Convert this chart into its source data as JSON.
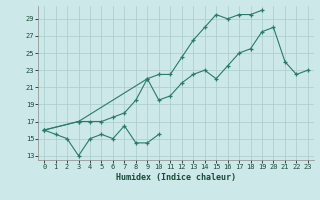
{
  "xlabel": "Humidex (Indice chaleur)",
  "bg_color": "#cce8e8",
  "grid_color": "#aacccc",
  "line_color": "#2a7a6a",
  "xlim": [
    -0.5,
    23.5
  ],
  "ylim": [
    12.5,
    30.5
  ],
  "xticks": [
    0,
    1,
    2,
    3,
    4,
    5,
    6,
    7,
    8,
    9,
    10,
    11,
    12,
    13,
    14,
    15,
    16,
    17,
    18,
    19,
    20,
    21,
    22,
    23
  ],
  "yticks": [
    13,
    15,
    17,
    19,
    21,
    23,
    25,
    27,
    29
  ],
  "line1_x": [
    0,
    1,
    2,
    3,
    4,
    5,
    6,
    7,
    8,
    9,
    10
  ],
  "line1_y": [
    16.0,
    15.5,
    15.0,
    13.0,
    15.0,
    15.5,
    15.0,
    16.5,
    14.5,
    14.5,
    15.5
  ],
  "line2_x": [
    0,
    3,
    4,
    5,
    6,
    7,
    8,
    9,
    10,
    11,
    12,
    13,
    14,
    15,
    16,
    17,
    18,
    19
  ],
  "line2_y": [
    16.0,
    17.0,
    17.0,
    17.0,
    17.5,
    18.0,
    19.5,
    22.0,
    22.5,
    22.5,
    24.5,
    26.5,
    28.0,
    29.5,
    29.0,
    29.5,
    29.5,
    30.0
  ],
  "line3_x": [
    0,
    3,
    9,
    10,
    11,
    12,
    13,
    14,
    15,
    16,
    17,
    18,
    19,
    20,
    21,
    22,
    23
  ],
  "line3_y": [
    16.0,
    17.0,
    22.0,
    19.5,
    20.0,
    21.5,
    22.5,
    23.0,
    22.0,
    23.5,
    25.0,
    25.5,
    27.5,
    28.0,
    24.0,
    22.5,
    23.0
  ]
}
